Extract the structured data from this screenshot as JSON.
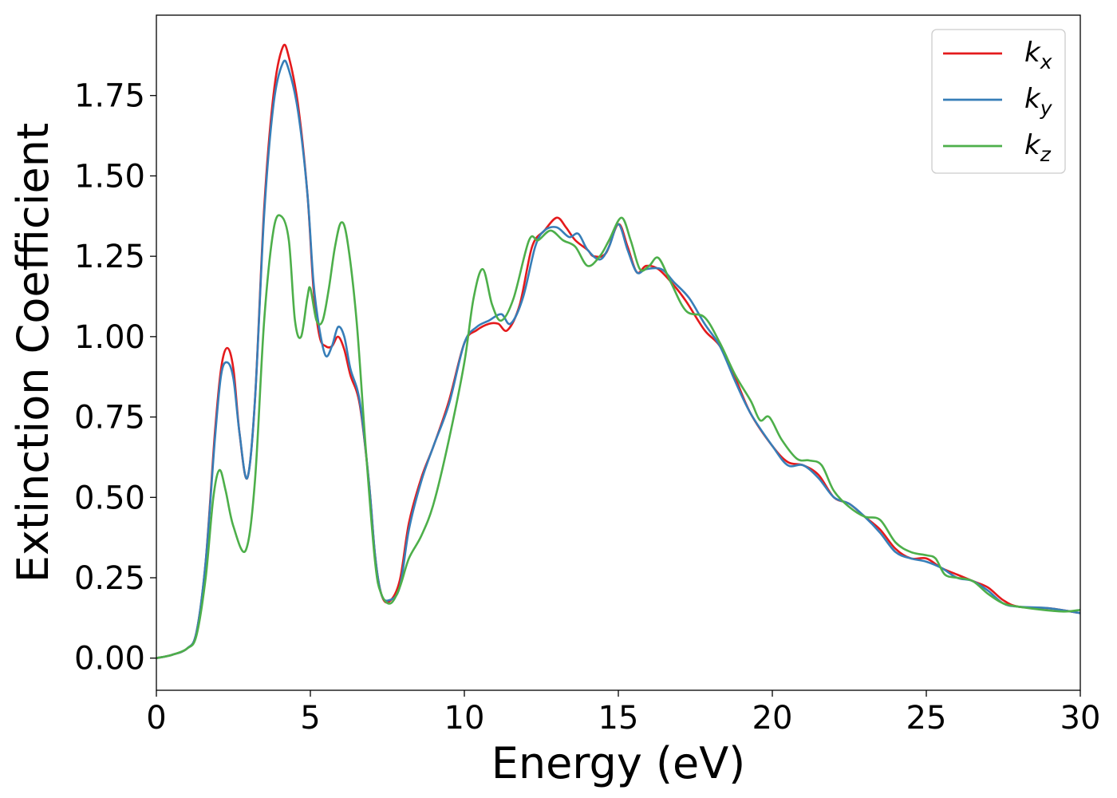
{
  "chart_data": {
    "type": "line",
    "xlabel": "Energy (eV)",
    "ylabel": "Extinction Coefficient",
    "xlim": [
      0,
      30
    ],
    "ylim": [
      -0.1,
      2.0
    ],
    "xticks": [
      0,
      5,
      10,
      15,
      20,
      25,
      30
    ],
    "xtick_labels": [
      "0",
      "5",
      "10",
      "15",
      "20",
      "25",
      "30"
    ],
    "yticks": [
      0.0,
      0.25,
      0.5,
      0.75,
      1.0,
      1.25,
      1.5,
      1.75
    ],
    "ytick_labels": [
      "0.00",
      "0.25",
      "0.50",
      "0.75",
      "1.00",
      "1.25",
      "1.50",
      "1.75"
    ],
    "grid": false,
    "legend_position": "top-right",
    "series": [
      {
        "name": "k",
        "subscript": "x",
        "color": "#e41a1c",
        "points": [
          [
            0,
            0
          ],
          [
            0.5,
            0.01
          ],
          [
            1,
            0.03
          ],
          [
            1.3,
            0.08
          ],
          [
            1.6,
            0.3
          ],
          [
            1.9,
            0.7
          ],
          [
            2.1,
            0.9
          ],
          [
            2.3,
            0.965
          ],
          [
            2.5,
            0.9
          ],
          [
            2.7,
            0.7
          ],
          [
            2.95,
            0.56
          ],
          [
            3.2,
            0.8
          ],
          [
            3.5,
            1.4
          ],
          [
            3.8,
            1.75
          ],
          [
            4.1,
            1.9
          ],
          [
            4.3,
            1.87
          ],
          [
            4.6,
            1.72
          ],
          [
            4.9,
            1.45
          ],
          [
            5.1,
            1.15
          ],
          [
            5.3,
            1.0
          ],
          [
            5.5,
            0.97
          ],
          [
            5.7,
            0.97
          ],
          [
            5.9,
            1.0
          ],
          [
            6.1,
            0.96
          ],
          [
            6.3,
            0.88
          ],
          [
            6.6,
            0.79
          ],
          [
            6.9,
            0.55
          ],
          [
            7.1,
            0.32
          ],
          [
            7.3,
            0.2
          ],
          [
            7.55,
            0.175
          ],
          [
            7.9,
            0.24
          ],
          [
            8.2,
            0.42
          ],
          [
            8.6,
            0.56
          ],
          [
            9,
            0.66
          ],
          [
            9.5,
            0.8
          ],
          [
            10,
            0.98
          ],
          [
            10.4,
            1.02
          ],
          [
            10.8,
            1.04
          ],
          [
            11.1,
            1.04
          ],
          [
            11.4,
            1.02
          ],
          [
            11.8,
            1.1
          ],
          [
            12.2,
            1.28
          ],
          [
            12.6,
            1.33
          ],
          [
            13,
            1.37
          ],
          [
            13.3,
            1.34
          ],
          [
            13.6,
            1.3
          ],
          [
            14,
            1.27
          ],
          [
            14.2,
            1.25
          ],
          [
            14.6,
            1.26
          ],
          [
            15,
            1.35
          ],
          [
            15.3,
            1.28
          ],
          [
            15.6,
            1.2
          ],
          [
            15.9,
            1.22
          ],
          [
            16.3,
            1.21
          ],
          [
            16.8,
            1.16
          ],
          [
            17.2,
            1.11
          ],
          [
            17.8,
            1.02
          ],
          [
            18.3,
            0.97
          ],
          [
            18.8,
            0.87
          ],
          [
            19.3,
            0.76
          ],
          [
            20,
            0.66
          ],
          [
            20.5,
            0.61
          ],
          [
            21,
            0.6
          ],
          [
            21.5,
            0.57
          ],
          [
            22,
            0.5
          ],
          [
            22.5,
            0.48
          ],
          [
            23,
            0.44
          ],
          [
            23.5,
            0.4
          ],
          [
            24,
            0.34
          ],
          [
            24.5,
            0.31
          ],
          [
            25,
            0.31
          ],
          [
            25.5,
            0.28
          ],
          [
            26,
            0.26
          ],
          [
            26.5,
            0.24
          ],
          [
            27,
            0.22
          ],
          [
            27.5,
            0.18
          ],
          [
            28,
            0.16
          ],
          [
            29,
            0.155
          ],
          [
            30,
            0.14
          ]
        ]
      },
      {
        "name": "k",
        "subscript": "y",
        "color": "#377eb8",
        "points": [
          [
            0,
            0
          ],
          [
            0.5,
            0.01
          ],
          [
            1,
            0.03
          ],
          [
            1.3,
            0.08
          ],
          [
            1.6,
            0.3
          ],
          [
            1.9,
            0.68
          ],
          [
            2.1,
            0.88
          ],
          [
            2.3,
            0.92
          ],
          [
            2.5,
            0.87
          ],
          [
            2.7,
            0.7
          ],
          [
            2.95,
            0.56
          ],
          [
            3.2,
            0.8
          ],
          [
            3.5,
            1.38
          ],
          [
            3.8,
            1.72
          ],
          [
            4.1,
            1.85
          ],
          [
            4.3,
            1.83
          ],
          [
            4.6,
            1.7
          ],
          [
            4.9,
            1.45
          ],
          [
            5.1,
            1.17
          ],
          [
            5.3,
            1.02
          ],
          [
            5.5,
            0.94
          ],
          [
            5.7,
            0.97
          ],
          [
            5.9,
            1.03
          ],
          [
            6.1,
            1.0
          ],
          [
            6.3,
            0.9
          ],
          [
            6.6,
            0.8
          ],
          [
            6.9,
            0.55
          ],
          [
            7.1,
            0.32
          ],
          [
            7.3,
            0.2
          ],
          [
            7.55,
            0.18
          ],
          [
            7.9,
            0.22
          ],
          [
            8.2,
            0.4
          ],
          [
            8.6,
            0.55
          ],
          [
            9,
            0.66
          ],
          [
            9.5,
            0.79
          ],
          [
            10,
            0.98
          ],
          [
            10.4,
            1.03
          ],
          [
            10.8,
            1.05
          ],
          [
            11.2,
            1.07
          ],
          [
            11.5,
            1.04
          ],
          [
            11.9,
            1.12
          ],
          [
            12.3,
            1.28
          ],
          [
            12.6,
            1.33
          ],
          [
            13,
            1.34
          ],
          [
            13.4,
            1.31
          ],
          [
            13.7,
            1.32
          ],
          [
            14,
            1.27
          ],
          [
            14.4,
            1.24
          ],
          [
            14.7,
            1.28
          ],
          [
            15,
            1.35
          ],
          [
            15.3,
            1.27
          ],
          [
            15.6,
            1.2
          ],
          [
            15.9,
            1.21
          ],
          [
            16.4,
            1.21
          ],
          [
            16.8,
            1.17
          ],
          [
            17.3,
            1.12
          ],
          [
            17.8,
            1.04
          ],
          [
            18.3,
            0.97
          ],
          [
            18.8,
            0.86
          ],
          [
            19.3,
            0.76
          ],
          [
            20,
            0.66
          ],
          [
            20.5,
            0.6
          ],
          [
            21,
            0.6
          ],
          [
            21.5,
            0.56
          ],
          [
            22,
            0.5
          ],
          [
            22.5,
            0.48
          ],
          [
            23,
            0.44
          ],
          [
            23.5,
            0.39
          ],
          [
            24,
            0.33
          ],
          [
            24.5,
            0.31
          ],
          [
            25,
            0.3
          ],
          [
            25.5,
            0.28
          ],
          [
            26,
            0.25
          ],
          [
            26.5,
            0.24
          ],
          [
            27,
            0.21
          ],
          [
            27.5,
            0.17
          ],
          [
            28,
            0.16
          ],
          [
            29,
            0.155
          ],
          [
            30,
            0.14
          ]
        ]
      },
      {
        "name": "k",
        "subscript": "z",
        "color": "#4daf4a",
        "points": [
          [
            0,
            0
          ],
          [
            0.5,
            0.01
          ],
          [
            1,
            0.03
          ],
          [
            1.3,
            0.07
          ],
          [
            1.6,
            0.25
          ],
          [
            1.85,
            0.5
          ],
          [
            2.05,
            0.585
          ],
          [
            2.25,
            0.52
          ],
          [
            2.5,
            0.41
          ],
          [
            2.9,
            0.335
          ],
          [
            3.2,
            0.55
          ],
          [
            3.5,
            1.05
          ],
          [
            3.8,
            1.33
          ],
          [
            4.05,
            1.375
          ],
          [
            4.3,
            1.3
          ],
          [
            4.5,
            1.05
          ],
          [
            4.7,
            1.0
          ],
          [
            4.9,
            1.12
          ],
          [
            5.0,
            1.15
          ],
          [
            5.2,
            1.05
          ],
          [
            5.4,
            1.05
          ],
          [
            5.6,
            1.15
          ],
          [
            5.8,
            1.28
          ],
          [
            6.0,
            1.355
          ],
          [
            6.2,
            1.3
          ],
          [
            6.5,
            1.05
          ],
          [
            6.8,
            0.65
          ],
          [
            7.1,
            0.3
          ],
          [
            7.3,
            0.2
          ],
          [
            7.6,
            0.17
          ],
          [
            7.9,
            0.22
          ],
          [
            8.2,
            0.31
          ],
          [
            8.6,
            0.38
          ],
          [
            9,
            0.48
          ],
          [
            9.5,
            0.68
          ],
          [
            10,
            0.92
          ],
          [
            10.3,
            1.12
          ],
          [
            10.6,
            1.21
          ],
          [
            10.9,
            1.1
          ],
          [
            11.2,
            1.05
          ],
          [
            11.6,
            1.12
          ],
          [
            12.1,
            1.3
          ],
          [
            12.4,
            1.3
          ],
          [
            12.8,
            1.33
          ],
          [
            13.2,
            1.3
          ],
          [
            13.6,
            1.28
          ],
          [
            14,
            1.22
          ],
          [
            14.4,
            1.25
          ],
          [
            14.7,
            1.3
          ],
          [
            15.1,
            1.37
          ],
          [
            15.4,
            1.3
          ],
          [
            15.7,
            1.21
          ],
          [
            16,
            1.22
          ],
          [
            16.3,
            1.245
          ],
          [
            16.7,
            1.17
          ],
          [
            17.2,
            1.08
          ],
          [
            17.8,
            1.06
          ],
          [
            18.3,
            0.98
          ],
          [
            18.8,
            0.88
          ],
          [
            19.3,
            0.8
          ],
          [
            19.6,
            0.74
          ],
          [
            19.9,
            0.75
          ],
          [
            20.3,
            0.68
          ],
          [
            20.8,
            0.62
          ],
          [
            21.2,
            0.615
          ],
          [
            21.6,
            0.6
          ],
          [
            22,
            0.52
          ],
          [
            22.5,
            0.47
          ],
          [
            23,
            0.44
          ],
          [
            23.5,
            0.43
          ],
          [
            24,
            0.36
          ],
          [
            24.5,
            0.33
          ],
          [
            25,
            0.32
          ],
          [
            25.3,
            0.31
          ],
          [
            25.6,
            0.26
          ],
          [
            26,
            0.25
          ],
          [
            26.5,
            0.24
          ],
          [
            27,
            0.2
          ],
          [
            27.5,
            0.17
          ],
          [
            28,
            0.16
          ],
          [
            28.8,
            0.15
          ],
          [
            29.5,
            0.145
          ],
          [
            30,
            0.15
          ]
        ]
      }
    ]
  }
}
